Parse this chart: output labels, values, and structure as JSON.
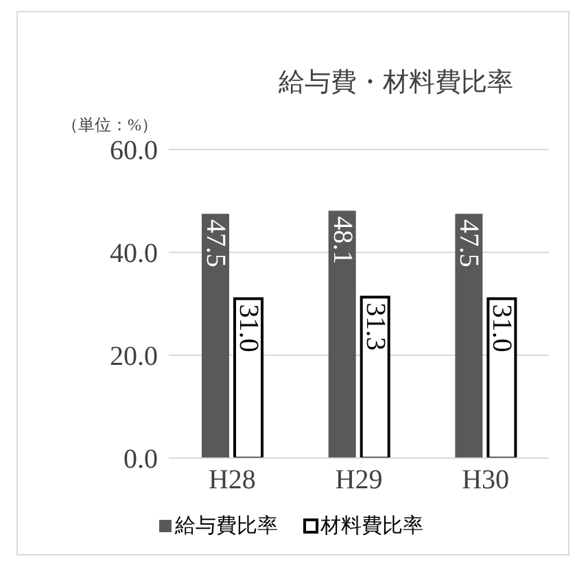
{
  "chart_data": {
    "type": "bar",
    "title": "給与費・材料費比率",
    "annotations": [
      "（単位：%）"
    ],
    "categories": [
      "H28",
      "H29",
      "H30"
    ],
    "series": [
      {
        "name": "給与費比率",
        "color": "#595959",
        "values": [
          47.5,
          48.1,
          47.5
        ],
        "value_labels": [
          "47.5",
          "48.1",
          "47.5"
        ]
      },
      {
        "name": "材料費比率",
        "color": "#ffffff",
        "values": [
          31.0,
          31.3,
          31.0
        ],
        "value_labels": [
          "31.0",
          "31.3",
          "31.0"
        ]
      }
    ],
    "ylim": [
      0,
      60
    ],
    "yticks": [
      {
        "value": 0,
        "label": "0.0"
      },
      {
        "value": 20,
        "label": "20.0"
      },
      {
        "value": 40,
        "label": "40.0"
      },
      {
        "value": 60,
        "label": "60.0"
      }
    ],
    "grid": "y",
    "legend": "bottom"
  }
}
